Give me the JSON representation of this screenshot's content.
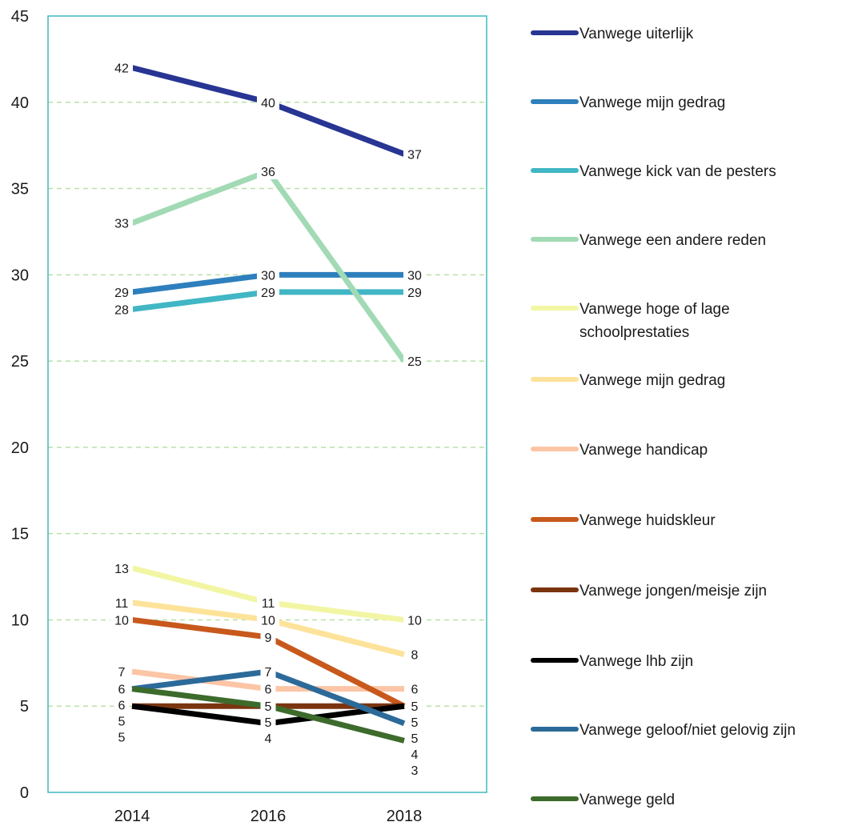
{
  "chart_data": {
    "type": "line",
    "x": [
      "2014",
      "2016",
      "2018"
    ],
    "ylim": [
      0,
      45
    ],
    "yticks": [
      "0",
      "5",
      "10",
      "15",
      "20",
      "25",
      "30",
      "35",
      "40",
      "45"
    ],
    "grid": true,
    "legend_position": "right",
    "frame_color": "#3fb8bf",
    "grid_color": "#b8e0a8",
    "series": [
      {
        "name": "Vanwege uiterlijk",
        "color": "#283593",
        "values": [
          42,
          40,
          37
        ]
      },
      {
        "name": "Vanwege mijn gedrag",
        "color": "#2e7fbd",
        "values": [
          29,
          30,
          30
        ]
      },
      {
        "name": "Vanwege kick van de pesters",
        "color": "#41b6c4",
        "values": [
          28,
          29,
          29
        ]
      },
      {
        "name": "Vanwege een andere reden",
        "color": "#a1dab4",
        "values": [
          33,
          36,
          25
        ]
      },
      {
        "name": "Vanwege hoge of lage schoolprestaties",
        "color": "#f2f6a4",
        "values": [
          13,
          11,
          10
        ]
      },
      {
        "name": "Vanwege mijn gedrag",
        "color": "#fde39a",
        "values": [
          11,
          10,
          8
        ]
      },
      {
        "name": "Vanwege handicap",
        "color": "#fcc5a6",
        "values": [
          7,
          6,
          6
        ]
      },
      {
        "name": "Vanwege huidskleur",
        "color": "#c8581c",
        "values": [
          10,
          9,
          5
        ]
      },
      {
        "name": "Vanwege jongen/meisje zijn",
        "color": "#7a3510",
        "values": [
          5,
          5,
          5
        ]
      },
      {
        "name": "Vanwege lhb zijn",
        "color": "#000000",
        "values": [
          5,
          4,
          5
        ]
      },
      {
        "name": "Vanwege geloof/niet gelovig zijn",
        "color": "#2c6a99",
        "values": [
          6,
          7,
          4
        ]
      },
      {
        "name": "Vanwege geld",
        "color": "#3d6b2c",
        "values": [
          6,
          5,
          3
        ]
      }
    ]
  }
}
